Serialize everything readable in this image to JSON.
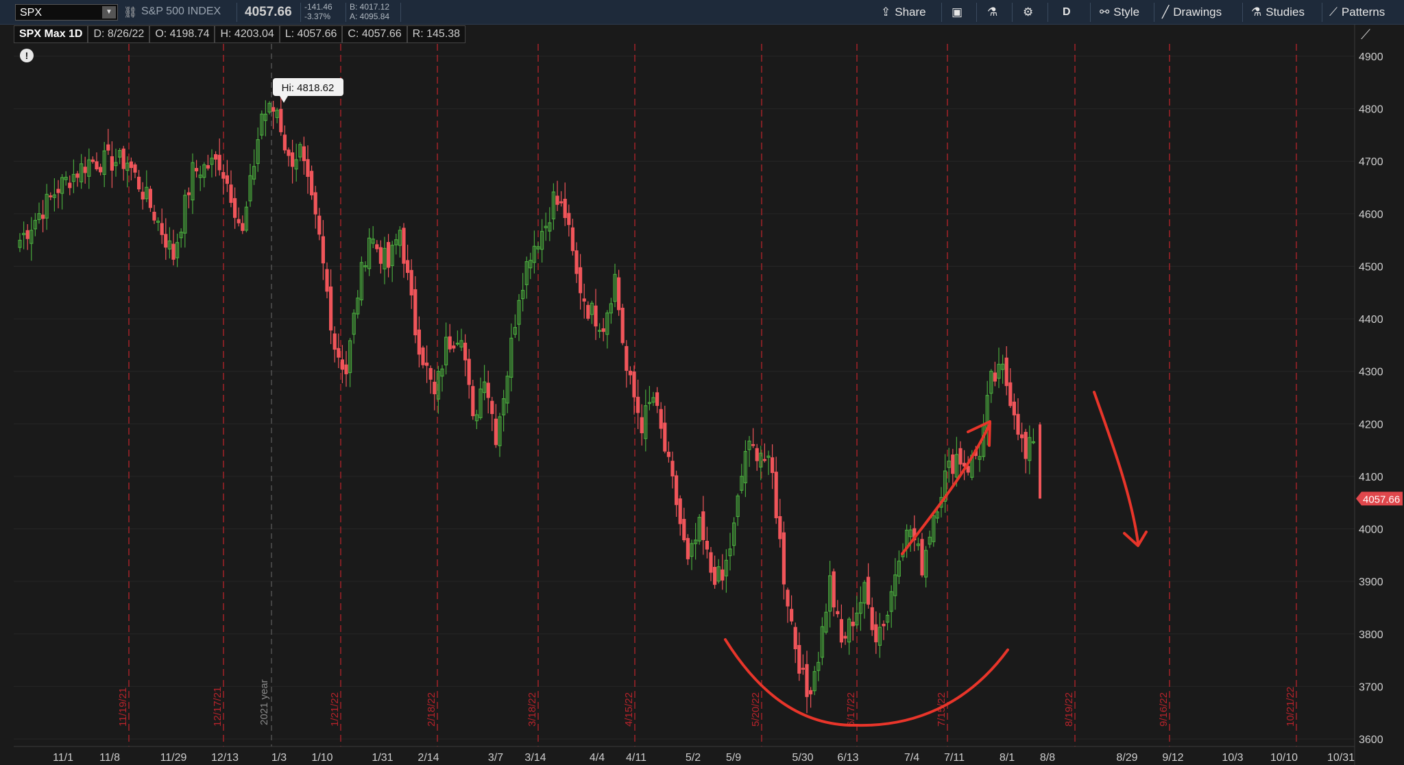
{
  "toolbar": {
    "symbol": "SPX",
    "index_name": "S&P 500 INDEX",
    "last_price": "4057.66",
    "net_change": "-141.46",
    "pct_change": "-3.37%",
    "bid": "B: 4017.12",
    "ask": "A: 4095.84",
    "share_label": "Share",
    "aggregation": "D",
    "style_label": "Style",
    "drawings_label": "Drawings",
    "studies_label": "Studies",
    "patterns_label": "Patterns",
    "icons": [
      "link-icon",
      "share-icon",
      "snapshot-icon",
      "flask-icon",
      "gear-icon",
      "style-icon",
      "pencil-icon",
      "studies-flask-icon",
      "patterns-icon"
    ]
  },
  "infobar": {
    "title": "SPX Max 1D",
    "date": "D: 8/26/22",
    "open": "O: 4198.74",
    "high": "H: 4203.04",
    "low": "L: 4057.66",
    "close": "C: 4057.66",
    "range": "R: 145.38"
  },
  "colors": {
    "background": "#1a1a1a",
    "up": "#49a93d",
    "down": "#f0555a",
    "event_line": "#b8232b",
    "annotation": "#e8352a",
    "price_bubble": "#e0474c"
  },
  "chart_data": {
    "type": "candlestick",
    "ylim": [
      3600,
      4900
    ],
    "y_ticks": [
      3600,
      3700,
      3800,
      3900,
      4000,
      4100,
      4200,
      4300,
      4400,
      4500,
      4600,
      4700,
      4800,
      4900
    ],
    "x_tick_labels": [
      "11/1",
      "11/8",
      "11/29",
      "12/13",
      "1/3",
      "1/10",
      "1/31",
      "2/14",
      "3/7",
      "3/14",
      "4/4",
      "4/11",
      "5/2",
      "5/9",
      "5/30",
      "6/13",
      "7/4",
      "7/11",
      "8/1",
      "8/8",
      "8/29",
      "9/12",
      "10/3",
      "10/10",
      "10/31"
    ],
    "year_marker": "2021 year",
    "hi_label": "Hi: 4818.62",
    "last_price_label": "4057.66",
    "event_labels": [
      "11/19/21",
      "12/17/21",
      "1/21/22",
      "2/18/22",
      "3/18/22",
      "4/15/22",
      "5/20/22",
      "6/17/22",
      "7/15/22",
      "8/19/22",
      "9/16/22",
      "10/21/22"
    ],
    "anchors": [
      {
        "d": 0,
        "c": 4550
      },
      {
        "d": 10,
        "c": 4650
      },
      {
        "d": 18,
        "c": 4700
      },
      {
        "d": 28,
        "c": 4700
      },
      {
        "d": 35,
        "c": 4600
      },
      {
        "d": 40,
        "c": 4520
      },
      {
        "d": 45,
        "c": 4680
      },
      {
        "d": 52,
        "c": 4700
      },
      {
        "d": 55,
        "c": 4640
      },
      {
        "d": 58,
        "c": 4560
      },
      {
        "d": 63,
        "c": 4790
      },
      {
        "d": 67,
        "c": 4800
      },
      {
        "d": 70,
        "c": 4700
      },
      {
        "d": 73,
        "c": 4720
      },
      {
        "d": 75,
        "c": 4650
      },
      {
        "d": 78,
        "c": 4550
      },
      {
        "d": 82,
        "c": 4350
      },
      {
        "d": 85,
        "c": 4300
      },
      {
        "d": 88,
        "c": 4450
      },
      {
        "d": 91,
        "c": 4560
      },
      {
        "d": 96,
        "c": 4500
      },
      {
        "d": 99,
        "c": 4570
      },
      {
        "d": 103,
        "c": 4380
      },
      {
        "d": 108,
        "c": 4250
      },
      {
        "d": 111,
        "c": 4350
      },
      {
        "d": 115,
        "c": 4380
      },
      {
        "d": 118,
        "c": 4200
      },
      {
        "d": 121,
        "c": 4300
      },
      {
        "d": 124,
        "c": 4180
      },
      {
        "d": 127,
        "c": 4300
      },
      {
        "d": 130,
        "c": 4450
      },
      {
        "d": 133,
        "c": 4530
      },
      {
        "d": 137,
        "c": 4580
      },
      {
        "d": 139,
        "c": 4630
      },
      {
        "d": 142,
        "c": 4600
      },
      {
        "d": 145,
        "c": 4480
      },
      {
        "d": 148,
        "c": 4420
      },
      {
        "d": 152,
        "c": 4390
      },
      {
        "d": 155,
        "c": 4480
      },
      {
        "d": 158,
        "c": 4300
      },
      {
        "d": 162,
        "c": 4200
      },
      {
        "d": 165,
        "c": 4250
      },
      {
        "d": 168,
        "c": 4150
      },
      {
        "d": 171,
        "c": 4050
      },
      {
        "d": 174,
        "c": 3930
      },
      {
        "d": 177,
        "c": 4000
      },
      {
        "d": 180,
        "c": 3920
      },
      {
        "d": 183,
        "c": 3900
      },
      {
        "d": 186,
        "c": 4000
      },
      {
        "d": 189,
        "c": 4150
      },
      {
        "d": 193,
        "c": 4150
      },
      {
        "d": 196,
        "c": 4100
      },
      {
        "d": 199,
        "c": 3910
      },
      {
        "d": 202,
        "c": 3780
      },
      {
        "d": 205,
        "c": 3680
      },
      {
        "d": 208,
        "c": 3760
      },
      {
        "d": 211,
        "c": 3900
      },
      {
        "d": 214,
        "c": 3780
      },
      {
        "d": 217,
        "c": 3830
      },
      {
        "d": 220,
        "c": 3880
      },
      {
        "d": 223,
        "c": 3800
      },
      {
        "d": 226,
        "c": 3840
      },
      {
        "d": 229,
        "c": 3960
      },
      {
        "d": 232,
        "c": 4000
      },
      {
        "d": 235,
        "c": 3930
      },
      {
        "d": 238,
        "c": 4030
      },
      {
        "d": 241,
        "c": 4100
      },
      {
        "d": 244,
        "c": 4140
      },
      {
        "d": 247,
        "c": 4120
      },
      {
        "d": 250,
        "c": 4150
      },
      {
        "d": 253,
        "c": 4280
      },
      {
        "d": 256,
        "c": 4300
      },
      {
        "d": 259,
        "c": 4230
      },
      {
        "d": 262,
        "c": 4130
      },
      {
        "d": 265,
        "c": 4199
      }
    ],
    "last_candle": {
      "open": 4198.74,
      "high": 4203.04,
      "low": 4057.66,
      "close": 4057.66
    }
  }
}
